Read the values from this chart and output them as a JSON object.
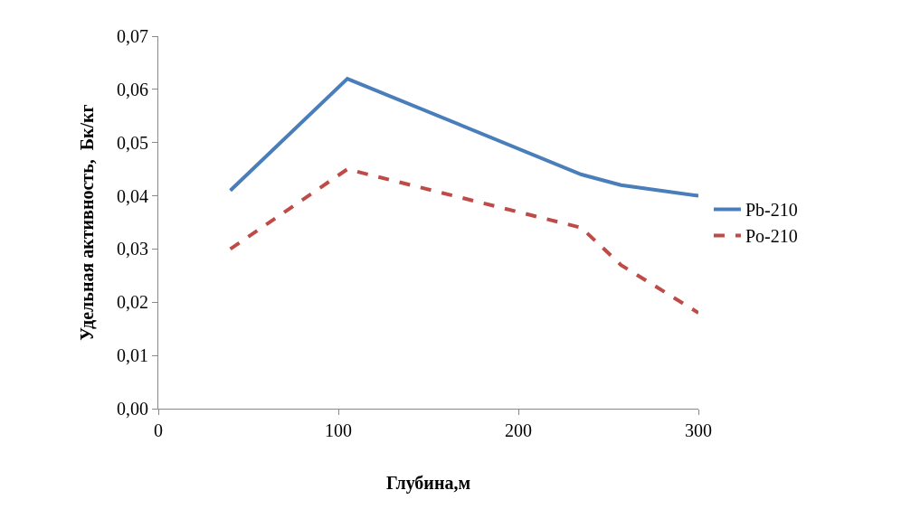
{
  "chart_data": {
    "type": "line",
    "xlabel": "Глубина,м",
    "ylabel": "Удельная активность,  Бк/кг",
    "x": [
      40,
      105,
      235,
      257,
      300
    ],
    "series": [
      {
        "name": "Pb-210",
        "color": "#4a7ebb",
        "values": [
          0.041,
          0.062,
          0.044,
          0.042,
          0.04
        ],
        "line_style": "solid"
      },
      {
        "name": "Po-210",
        "color": "#be4b48",
        "values": [
          0.03,
          0.045,
          0.034,
          0.027,
          0.018
        ],
        "line_style": "dashed"
      }
    ],
    "xlim": [
      0,
      300
    ],
    "xticks": [
      0,
      100,
      200,
      300
    ],
    "ylim": [
      0,
      0.07
    ],
    "yticks": [
      {
        "value": 0,
        "label": "0,00"
      },
      {
        "value": 0.01,
        "label": "0,01"
      },
      {
        "value": 0.02,
        "label": "0,02"
      },
      {
        "value": 0.03,
        "label": "0,03"
      },
      {
        "value": 0.04,
        "label": "0,04"
      },
      {
        "value": 0.05,
        "label": "0,05"
      },
      {
        "value": 0.06,
        "label": "0,06"
      },
      {
        "value": 0.07,
        "label": "0,07"
      }
    ],
    "grid": false,
    "legend": "right",
    "marker": "none"
  }
}
